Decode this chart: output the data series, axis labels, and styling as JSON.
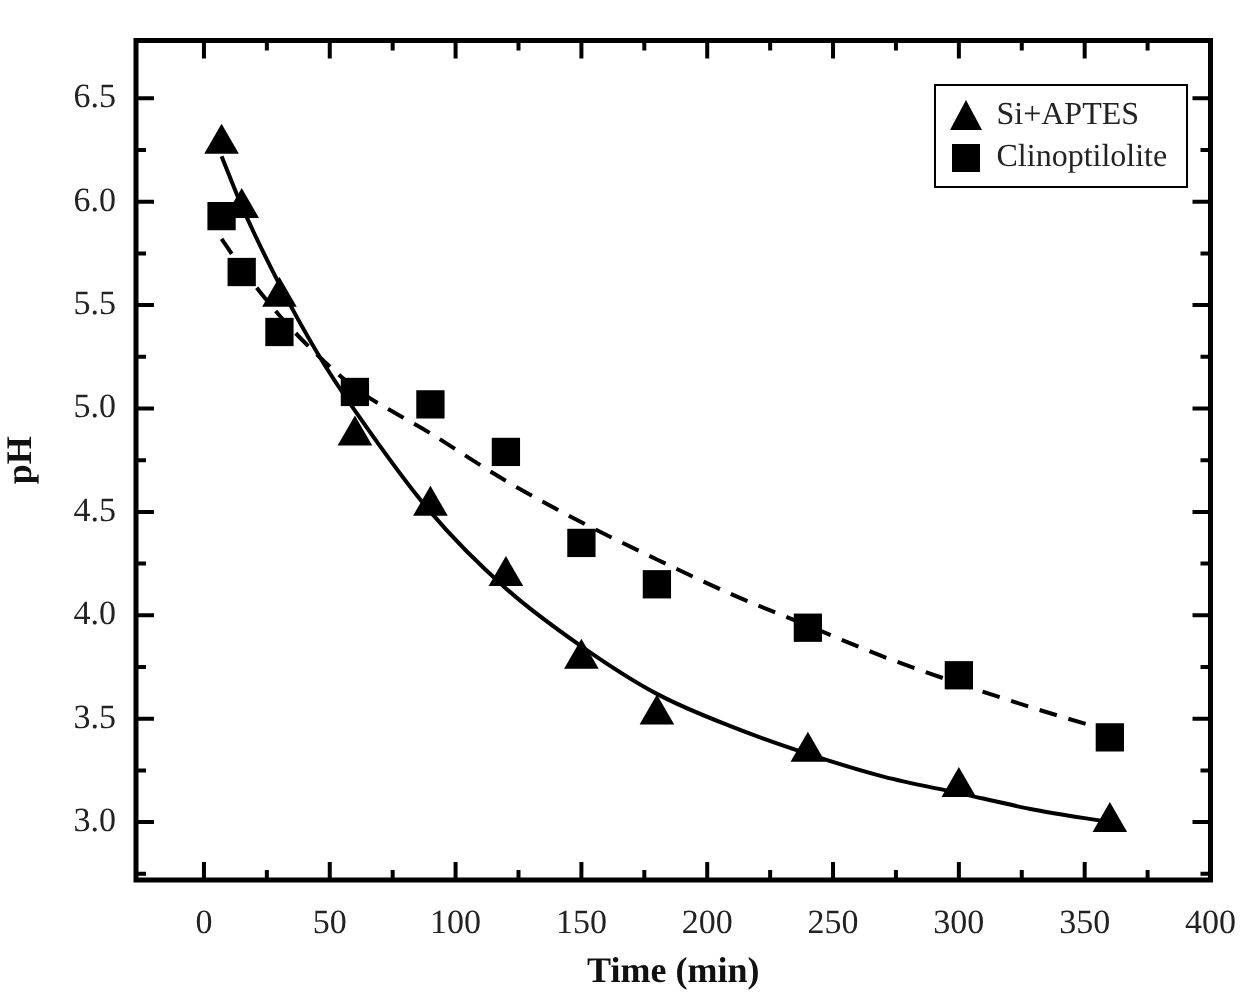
{
  "chart_data": {
    "type": "scatter",
    "xlabel": "Time (min)",
    "ylabel": "pH",
    "xlim": [
      -27,
      400
    ],
    "ylim": [
      2.72,
      6.78
    ],
    "xticks": [
      0,
      {
        "value": 25,
        "label": null
      },
      50,
      {
        "value": 75,
        "label": null
      },
      100,
      {
        "value": 125,
        "label": null
      },
      150,
      {
        "value": 175,
        "label": null
      },
      200,
      {
        "value": 225,
        "label": null
      },
      250,
      {
        "value": 275,
        "label": null
      },
      300,
      {
        "value": 325,
        "label": null
      },
      350,
      {
        "value": 375,
        "label": null
      },
      400
    ],
    "yticks": [
      {
        "value": 2.75,
        "label": null
      },
      {
        "value": 3.0,
        "label": "3.0"
      },
      {
        "value": 3.25,
        "label": null
      },
      3.5,
      {
        "value": 3.75,
        "label": null
      },
      {
        "value": 4.0,
        "label": "4.0"
      },
      {
        "value": 4.25,
        "label": null
      },
      4.5,
      {
        "value": 4.75,
        "label": null
      },
      {
        "value": 5.0,
        "label": "5.0"
      },
      {
        "value": 5.25,
        "label": null
      },
      5.5,
      {
        "value": 5.75,
        "label": null
      },
      {
        "value": 6.0,
        "label": "6.0"
      },
      {
        "value": 6.25,
        "label": null
      },
      6.5
    ],
    "grid": false,
    "legend": "top right",
    "series": [
      {
        "name": "Si+APTES",
        "marker": "triangle",
        "color": "#000000",
        "x": [
          7,
          15,
          30,
          60,
          90,
          120,
          150,
          180,
          240,
          300,
          360
        ],
        "values": [
          6.28,
          5.97,
          5.54,
          4.87,
          4.53,
          4.19,
          3.79,
          3.52,
          3.34,
          3.17,
          3.0
        ]
      },
      {
        "name": "Clinoptilolite",
        "marker": "square",
        "color": "#000000",
        "x": [
          7,
          15,
          30,
          60,
          90,
          120,
          150,
          180,
          240,
          300,
          360
        ],
        "values": [
          5.93,
          5.66,
          5.37,
          5.08,
          5.02,
          4.79,
          4.35,
          4.15,
          3.94,
          3.71,
          3.41
        ]
      },
      {
        "type": "line",
        "marker": "none",
        "line_style": "solid",
        "color": "#000000",
        "x": [
          7,
          15,
          30,
          45,
          60,
          90,
          120,
          150,
          180,
          210,
          240,
          270,
          300,
          330,
          360
        ],
        "values": [
          6.22,
          5.98,
          5.6,
          5.27,
          4.99,
          4.5,
          4.13,
          3.85,
          3.62,
          3.46,
          3.33,
          3.22,
          3.14,
          3.06,
          3.0
        ]
      },
      {
        "type": "line",
        "marker": "none",
        "line_style": "dashed",
        "color": "#000000",
        "x": [
          7,
          15,
          30,
          45,
          60,
          90,
          120,
          150,
          180,
          210,
          240,
          270,
          300,
          330,
          360
        ],
        "values": [
          5.82,
          5.68,
          5.45,
          5.26,
          5.1,
          4.88,
          4.65,
          4.45,
          4.27,
          4.1,
          3.95,
          3.8,
          3.67,
          3.55,
          3.44
        ]
      }
    ]
  }
}
